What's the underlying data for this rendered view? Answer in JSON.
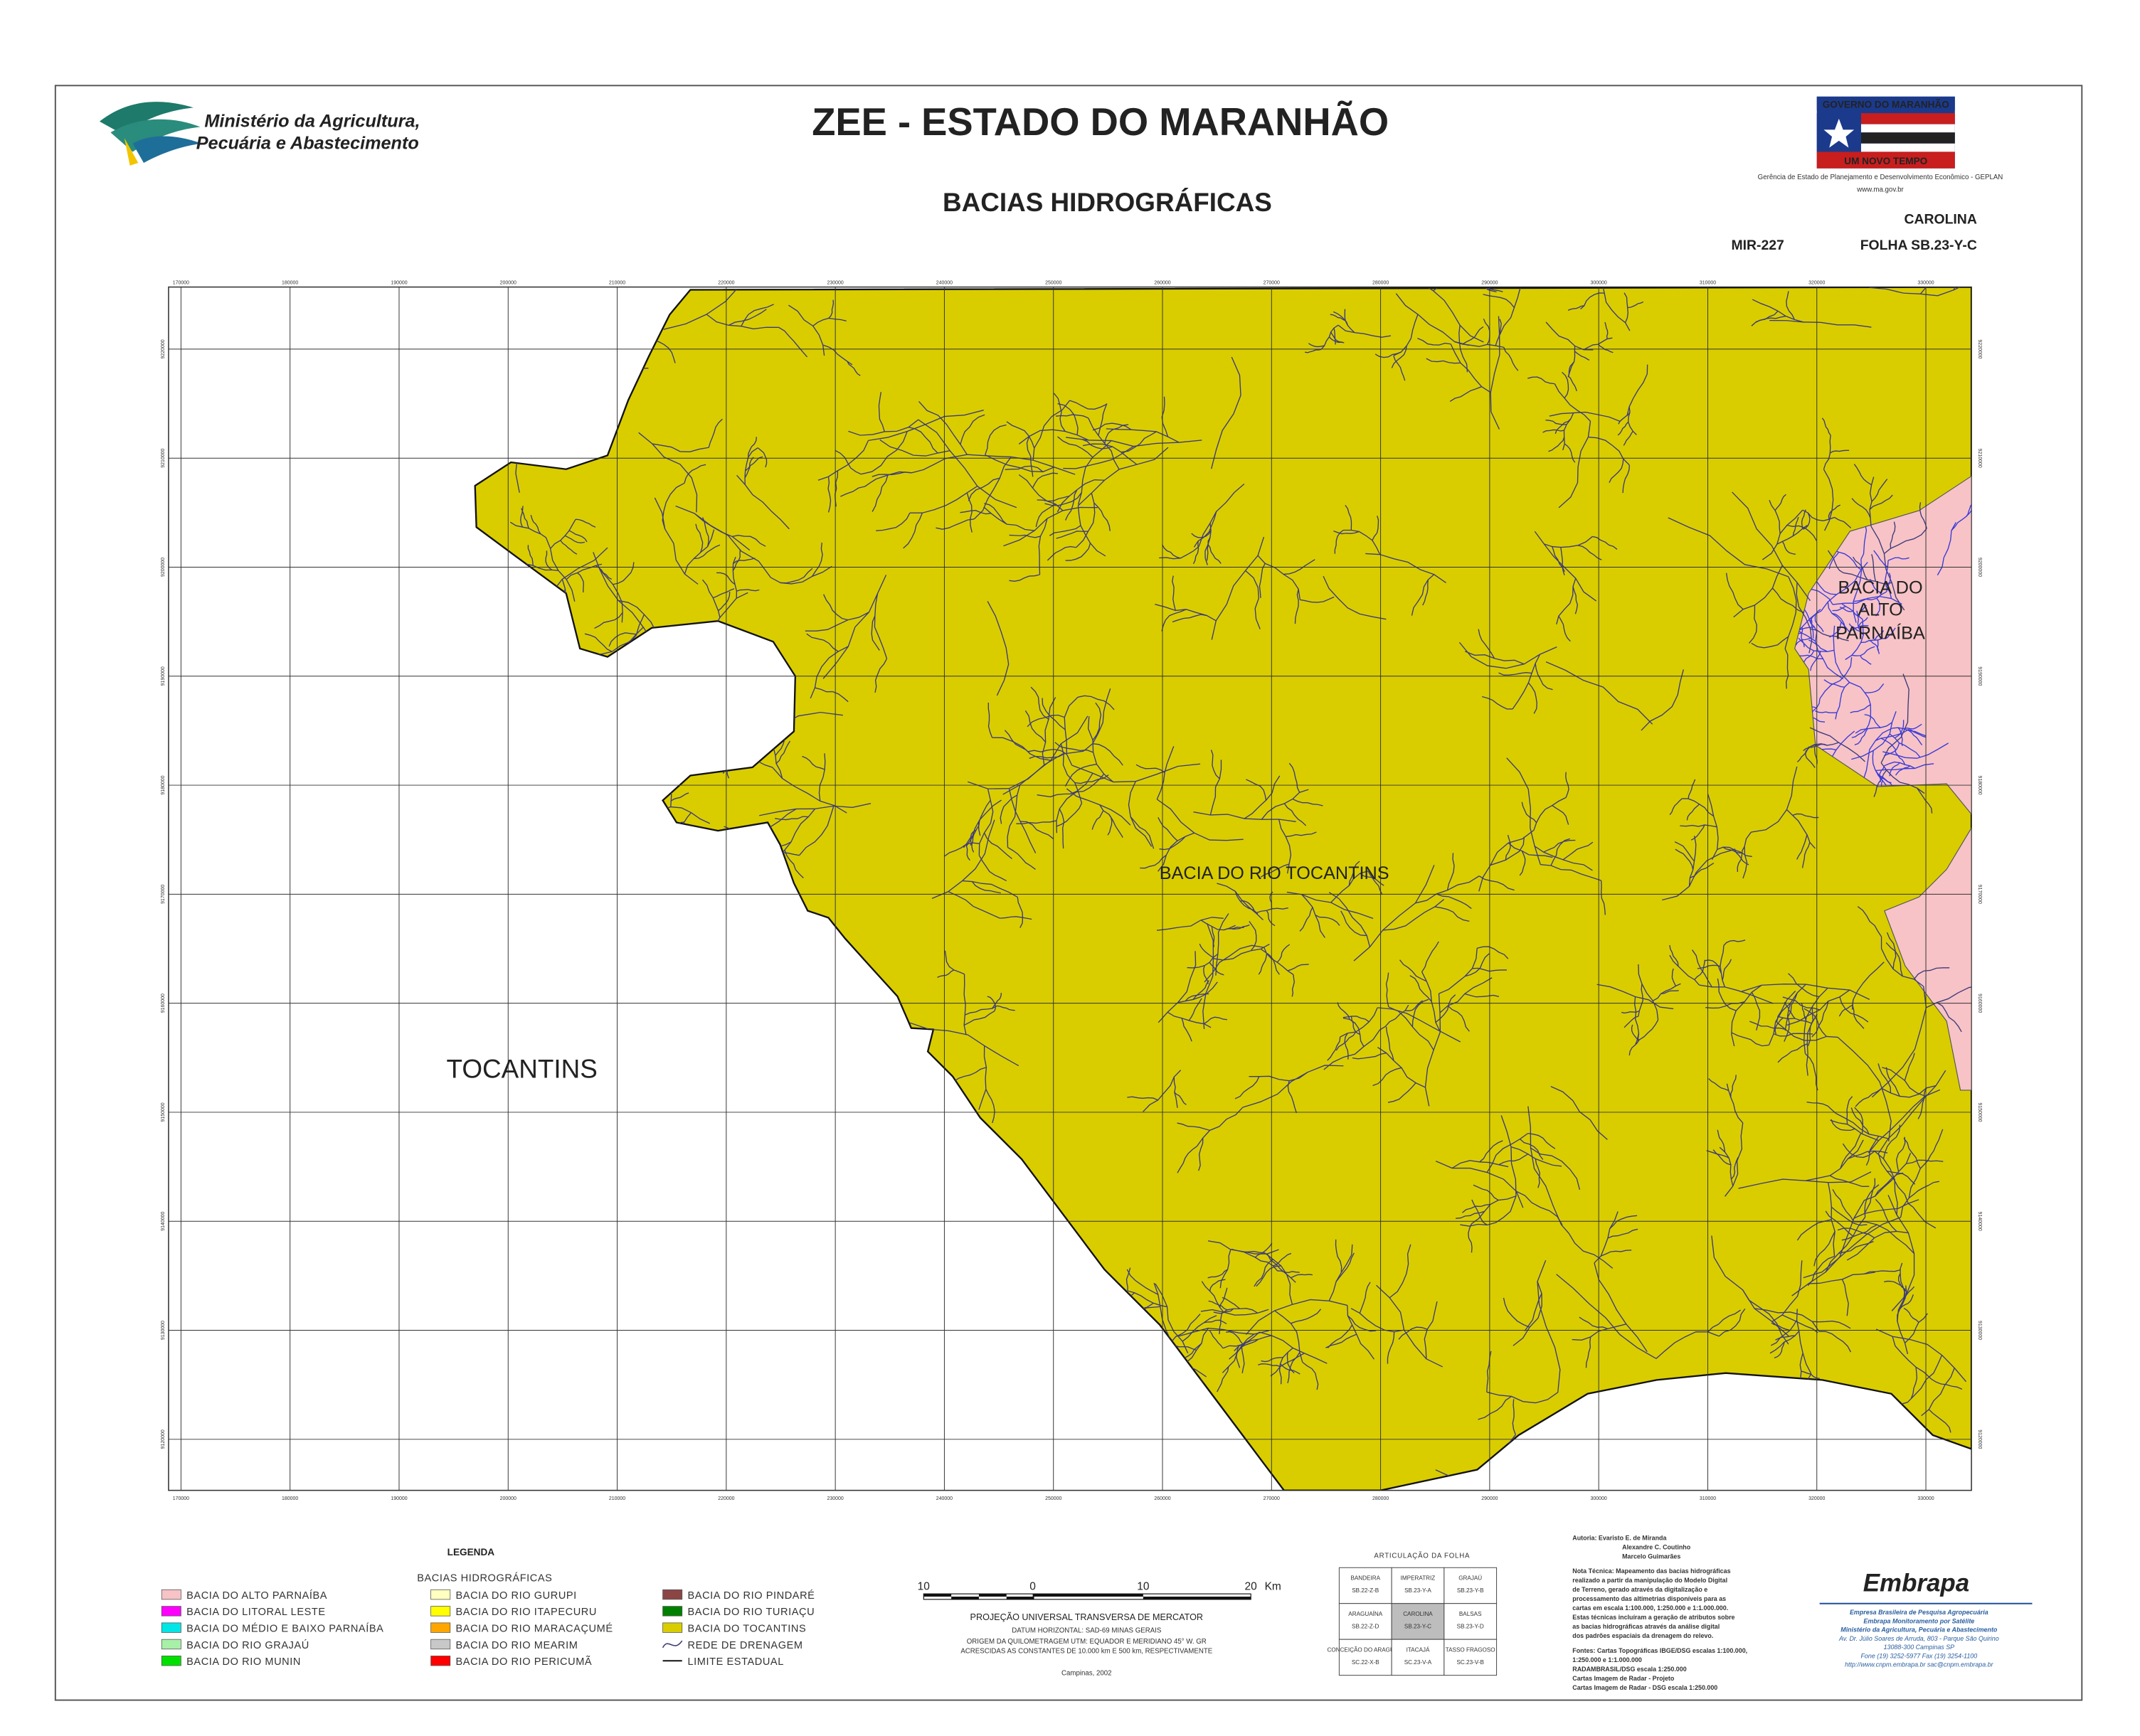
{
  "header": {
    "ministry": [
      "Ministério da Agricultura,",
      "Pecuária e Abastecimento"
    ],
    "title": "ZEE - ESTADO DO MARANHÃO",
    "subtitle": "BACIAS HIDROGRÁFICAS",
    "government": {
      "top": "GOVERNO DO MARANHÃO",
      "bottom": "UM NOVO TEMPO",
      "agency": "Gerência de Estado de Planejamento e Desenvolvimento Econômico - GEPLAN",
      "url": "www.ma.gov.br"
    },
    "sheet_name": "CAROLINA",
    "mir": "MIR-227",
    "sheet": "FOLHA SB.23-Y-C"
  },
  "map": {
    "labels": {
      "state": "TOCANTINS",
      "tocantins": "BACIA DO RIO TOCANTINS",
      "parnaiba": [
        "BACIA DO",
        "ALTO",
        "PARNAÍBA"
      ]
    },
    "grid": {
      "eastings": [
        170000,
        180000,
        190000,
        200000,
        210000,
        220000,
        230000,
        240000,
        250000,
        260000,
        270000,
        280000,
        290000,
        300000,
        310000,
        320000,
        330000
      ],
      "northings": [
        9220000,
        9210000,
        9200000,
        9190000,
        9180000,
        9170000,
        9160000,
        9150000,
        9140000,
        9130000,
        9120000
      ]
    }
  },
  "legend": {
    "title": "LEGENDA",
    "group": "BACIAS HIDROGRÁFICAS",
    "items": [
      {
        "name": "BACIA DO ALTO PARNAÍBA",
        "color": "#f7c3c6"
      },
      {
        "name": "BACIA DO LITORAL LESTE",
        "color": "#ff00ff"
      },
      {
        "name": "BACIA DO MÉDIO E BAIXO PARNAÍBA",
        "color": "#00e6e6"
      },
      {
        "name": "BACIA DO RIO GRAJAÚ",
        "color": "#a8f0a8"
      },
      {
        "name": "BACIA DO RIO MUNIN",
        "color": "#00e000"
      },
      {
        "name": "BACIA DO RIO GURUPI",
        "color": "#ffffc0"
      },
      {
        "name": "BACIA DO RIO ITAPECURU",
        "color": "#ffff00"
      },
      {
        "name": "BACIA DO RIO MARACAÇUMÉ",
        "color": "#ffa500"
      },
      {
        "name": "BACIA DO RIO MEARIM",
        "color": "#c8c8c8"
      },
      {
        "name": "BACIA DO RIO PERICUMÃ",
        "color": "#ff0000"
      },
      {
        "name": "BACIA DO RIO PINDARÉ",
        "color": "#8b4545"
      },
      {
        "name": "BACIA DO RIO TURIAÇU",
        "color": "#008000"
      },
      {
        "name": "BACIA DO TOCANTINS",
        "color": "#d9cd00"
      }
    ],
    "lines": [
      "REDE DE DRENAGEM",
      "LIMITE ESTADUAL"
    ]
  },
  "scale": {
    "labels": [
      "10",
      "0",
      "10",
      "20"
    ],
    "unit": "Km",
    "notes": [
      "PROJEÇÃO UNIVERSAL TRANSVERSA DE MERCATOR",
      "DATUM HORIZONTAL: SAD-69 MINAS GERAIS",
      "ORIGEM DA QUILOMETRAGEM UTM: EQUADOR E MERIDIANO 45° W. GR",
      "ACRESCIDAS AS CONSTANTES DE 10.000 km E 500 km, RESPECTIVAMENTE"
    ],
    "place": "Campinas, 2002"
  },
  "articulation": {
    "title": "ARTICULAÇÃO DA FOLHA",
    "rows": [
      [
        [
          "BANDEIRA",
          "SB.22-Z-B"
        ],
        [
          "IMPERATRIZ",
          "SB.23-Y-A"
        ],
        [
          "GRAJAÚ",
          "SB.23-Y-B"
        ]
      ],
      [
        [
          "ARAGUAÍNA",
          "SB.22-Z-D"
        ],
        [
          "CAROLINA",
          "SB.23-Y-C"
        ],
        [
          "BALSAS",
          "SB.23-Y-D"
        ]
      ],
      [
        [
          "CONCEIÇÃO DO ARAGUAIA",
          "SC.22-X-B"
        ],
        [
          "ITACAJÁ",
          "SC.23-V-A"
        ],
        [
          "TASSO FRAGOSO",
          "SC.23-V-B"
        ]
      ]
    ]
  },
  "credits": [
    "Autoria: Evaristo E. de Miranda",
    "Alexandre C. Coutinho",
    "Marcelo Guimarães",
    "Nota Técnica: Mapeamento das bacias hidrográficas",
    "realizado a partir da manipulação do Modelo Digital",
    "de Terreno, gerado através da digitalização e",
    "processamento das altimetrias disponíveis para as",
    "cartas em escala 1:100.000, 1:250.000 e 1:1.000.000.",
    "Estas técnicas incluíram a geração de atributos sobre",
    "as bacias hidrográficas através da análise digital",
    "dos padrões espaciais da drenagem do relevo.",
    "Fontes: Cartas Topográficas IBGE/DSG escalas 1:100.000,",
    "1:250.000 e 1:1.000.000",
    "RADAMBRASIL/DSG escala 1:250.000",
    "Cartas Imagem de Radar - Projeto",
    "Cartas Imagem de Radar - DSG escala 1:250.000"
  ],
  "embrapa": {
    "logo": "Embrapa",
    "lines": [
      "Empresa Brasileira de Pesquisa Agropecuária",
      "Embrapa Monitoramento por Satélite",
      "Ministério da Agricultura, Pecuária e Abastecimento",
      "Av. Dr. Júlio Soares de Arruda, 803 - Parque São Quirino",
      "13088-300 Campinas SP",
      "Fone (19) 3252-5977 Fax (19) 3254-1100",
      "http://www.cnpm.embrapa.br  sac@cnpm.embrapa.br"
    ]
  }
}
